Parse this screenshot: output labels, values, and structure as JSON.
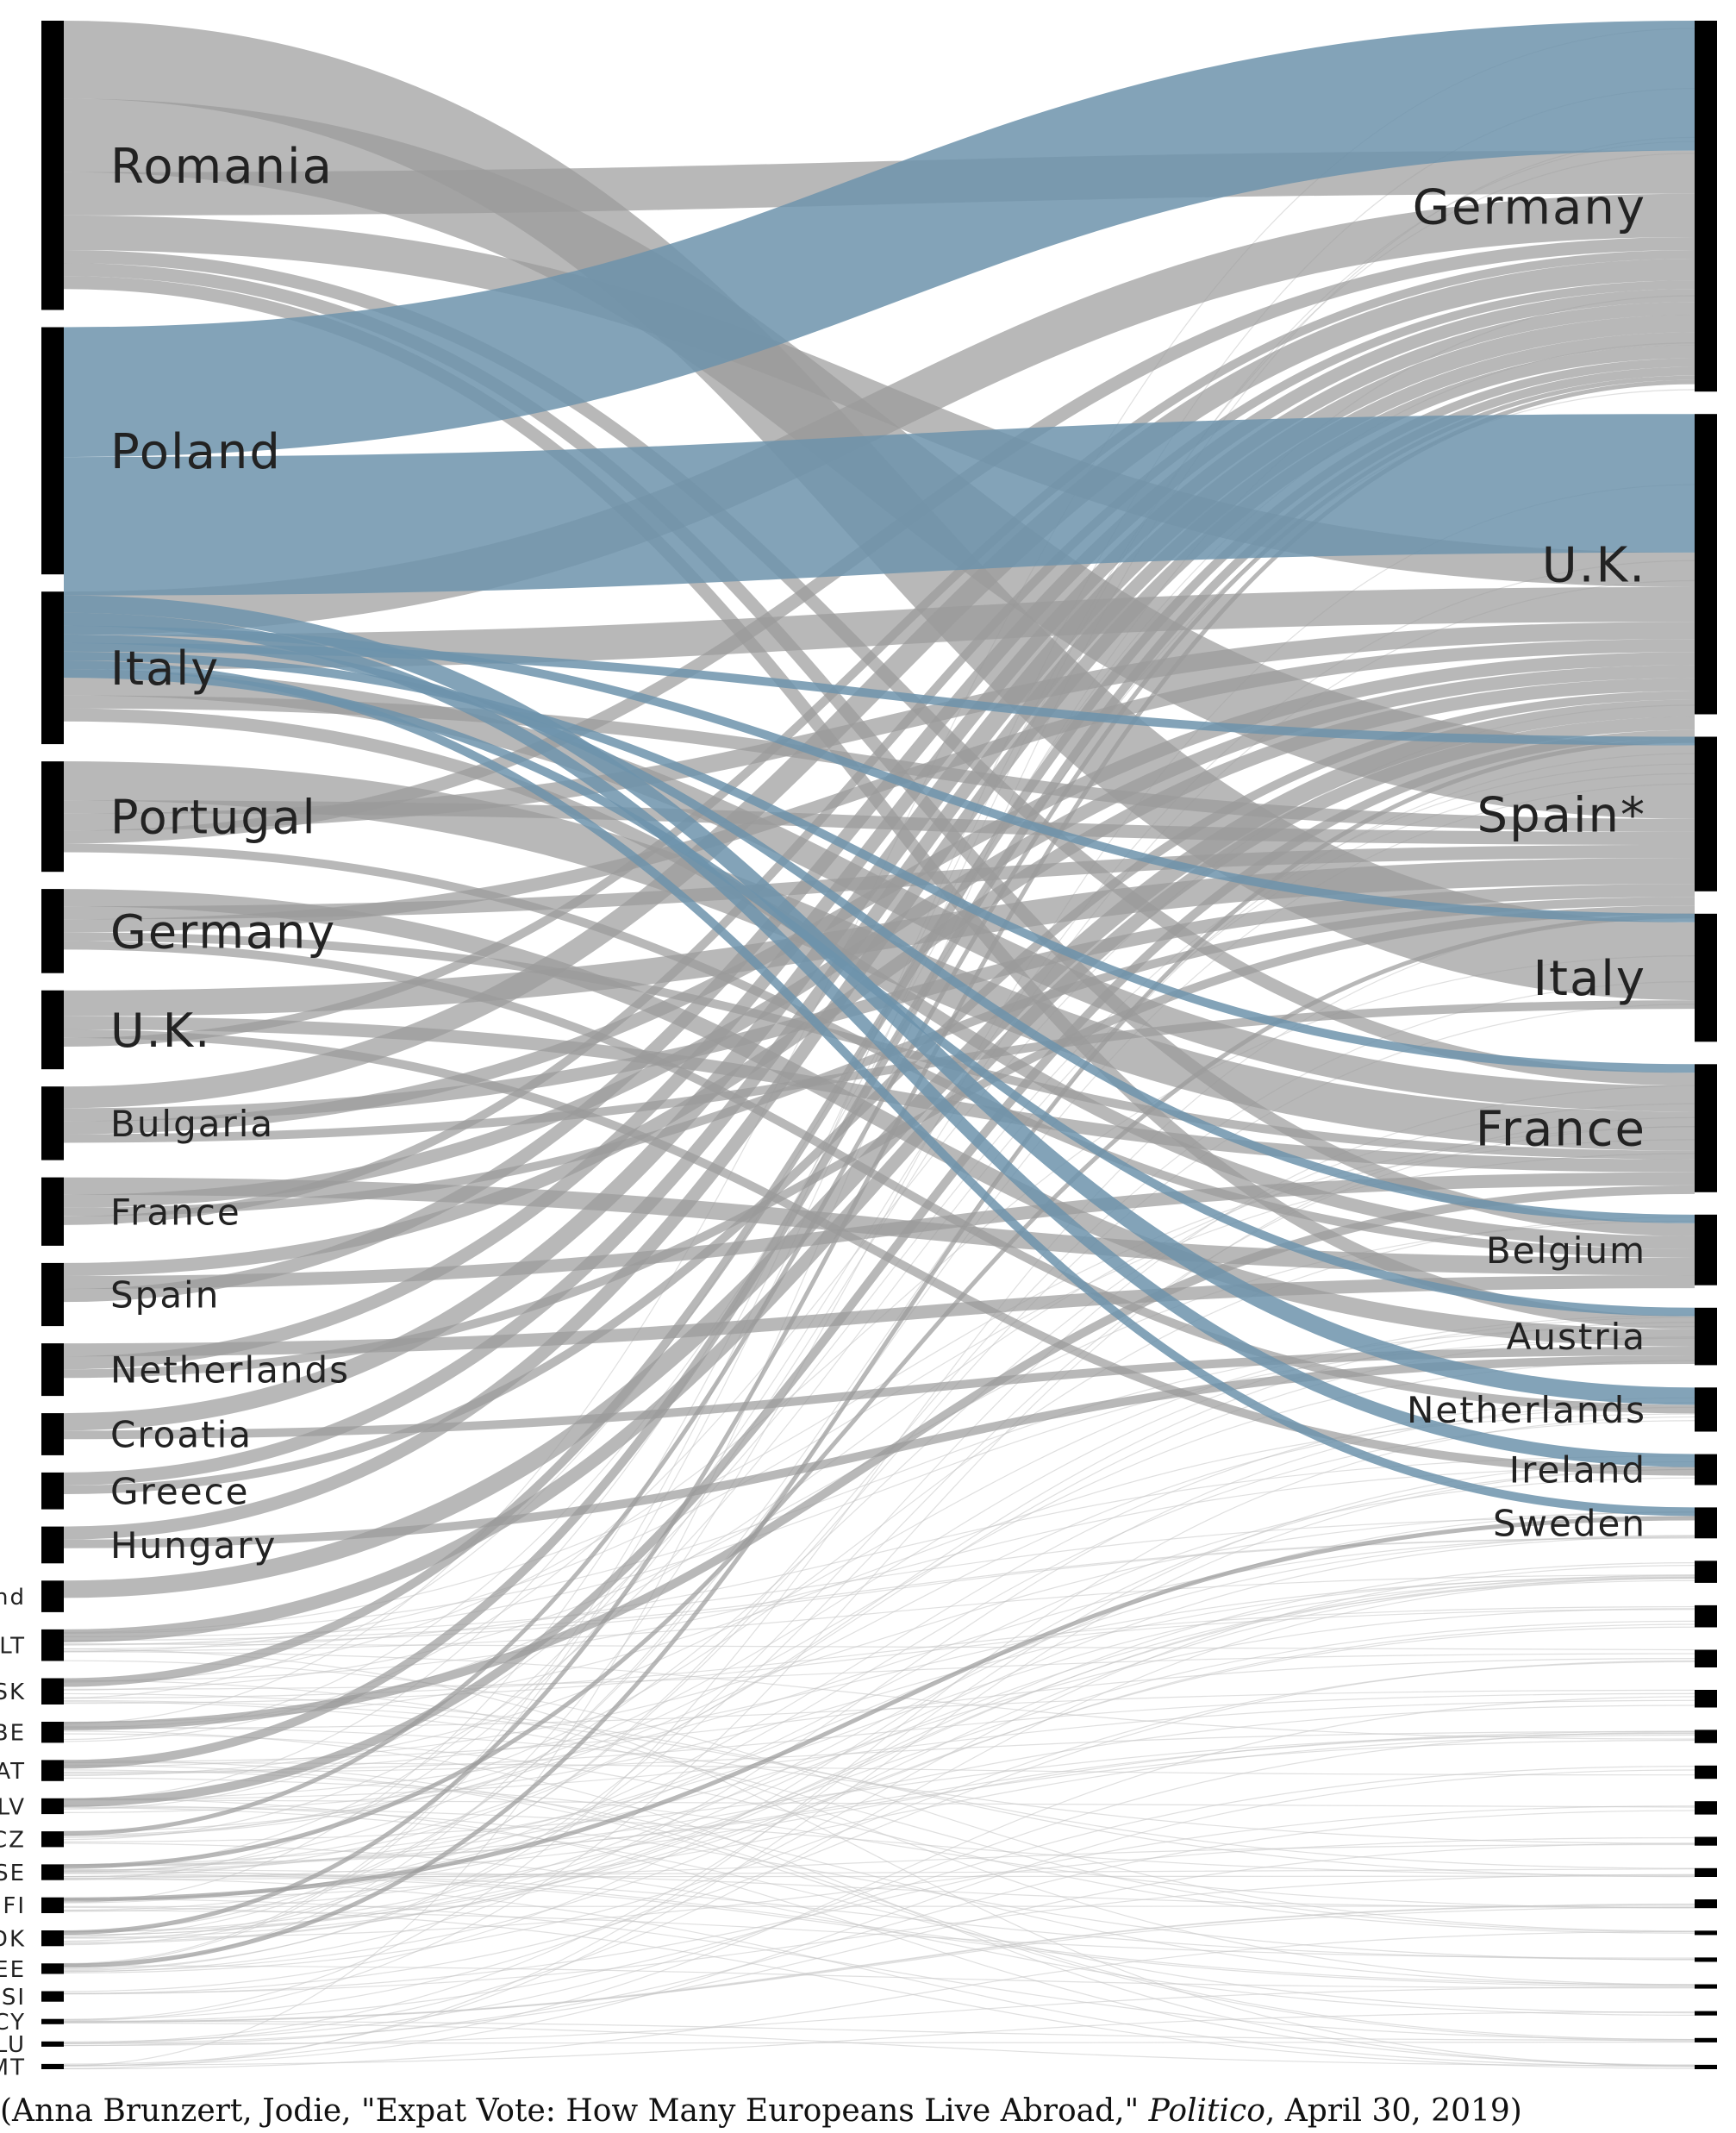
{
  "chart_data": {
    "type": "sankey",
    "title": "",
    "left_nodes": [
      {
        "label": "Romania",
        "weight": 55
      },
      {
        "label": "Poland",
        "weight": 47
      },
      {
        "label": "Italy",
        "weight": 29
      },
      {
        "label": "Portugal",
        "weight": 21
      },
      {
        "label": "Germany",
        "weight": 16
      },
      {
        "label": "U.K.",
        "weight": 15
      },
      {
        "label": "Bulgaria",
        "weight": 14
      },
      {
        "label": "France",
        "weight": 13
      },
      {
        "label": "Spain",
        "weight": 12
      },
      {
        "label": "Netherlands",
        "weight": 10
      },
      {
        "label": "Croatia",
        "weight": 8
      },
      {
        "label": "Greece",
        "weight": 7
      },
      {
        "label": "Hungary",
        "weight": 7
      },
      {
        "label": "Ireland",
        "weight": 6
      },
      {
        "label": "LT",
        "weight": 6
      },
      {
        "label": "SK",
        "weight": 5
      },
      {
        "label": "BE",
        "weight": 4
      },
      {
        "label": "AT",
        "weight": 4
      },
      {
        "label": "LV",
        "weight": 3
      },
      {
        "label": "CZ",
        "weight": 3
      },
      {
        "label": "SE",
        "weight": 3
      },
      {
        "label": "FI",
        "weight": 3
      },
      {
        "label": "DK",
        "weight": 3
      },
      {
        "label": "EE",
        "weight": 2
      },
      {
        "label": "SI",
        "weight": 2
      },
      {
        "label": "CY",
        "weight": 1
      },
      {
        "label": "LU",
        "weight": 1
      },
      {
        "label": "MT",
        "weight": 1
      }
    ],
    "right_nodes": [
      {
        "label": "Germany",
        "weight": 84
      },
      {
        "label": "U.K.",
        "weight": 68
      },
      {
        "label": "Spain*",
        "weight": 35
      },
      {
        "label": "Italy",
        "weight": 29
      },
      {
        "label": "France",
        "weight": 29
      },
      {
        "label": "Belgium",
        "weight": 16
      },
      {
        "label": "Austria",
        "weight": 13
      },
      {
        "label": "Netherlands",
        "weight": 10
      },
      {
        "label": "Ireland",
        "weight": 7
      },
      {
        "label": "Sweden",
        "weight": 7
      },
      {
        "label": "",
        "weight": 5
      },
      {
        "label": "",
        "weight": 5
      },
      {
        "label": "",
        "weight": 4
      },
      {
        "label": "",
        "weight": 4
      },
      {
        "label": "",
        "weight": 3
      },
      {
        "label": "",
        "weight": 3
      },
      {
        "label": "",
        "weight": 3
      },
      {
        "label": "",
        "weight": 2
      },
      {
        "label": "",
        "weight": 2
      },
      {
        "label": "",
        "weight": 2
      },
      {
        "label": "",
        "weight": 1
      },
      {
        "label": "",
        "weight": 1
      },
      {
        "label": "",
        "weight": 1
      },
      {
        "label": "",
        "weight": 1
      },
      {
        "label": "",
        "weight": 1
      },
      {
        "label": "",
        "weight": 1
      }
    ],
    "highlighted_source": "Poland",
    "flows": [
      {
        "source": "Poland",
        "target": "Germany",
        "value": 30
      },
      {
        "source": "Poland",
        "target": "U.K.",
        "value": 32
      },
      {
        "source": "Poland",
        "target": "Netherlands",
        "value": 4
      },
      {
        "source": "Poland",
        "target": "Ireland",
        "value": 3
      },
      {
        "source": "Poland",
        "target": "Italy",
        "value": 2
      },
      {
        "source": "Poland",
        "target": "Belgium",
        "value": 2
      },
      {
        "source": "Poland",
        "target": "Spain*",
        "value": 2
      },
      {
        "source": "Poland",
        "target": "France",
        "value": 2
      },
      {
        "source": "Poland",
        "target": "Sweden",
        "value": 2
      },
      {
        "source": "Poland",
        "target": "Austria",
        "value": 2
      },
      {
        "source": "Romania",
        "target": "Italy",
        "value": 18
      },
      {
        "source": "Romania",
        "target": "Spain*",
        "value": 17
      },
      {
        "source": "Romania",
        "target": "Germany",
        "value": 10
      },
      {
        "source": "Romania",
        "target": "U.K.",
        "value": 8
      },
      {
        "source": "Romania",
        "target": "France",
        "value": 3
      },
      {
        "source": "Romania",
        "target": "Belgium",
        "value": 3
      },
      {
        "source": "Romania",
        "target": "Austria",
        "value": 3
      },
      {
        "source": "Italy",
        "target": "Germany",
        "value": 10
      },
      {
        "source": "Italy",
        "target": "U.K.",
        "value": 8
      },
      {
        "source": "Italy",
        "target": "France",
        "value": 6
      },
      {
        "source": "Italy",
        "target": "Spain*",
        "value": 3
      },
      {
        "source": "Italy",
        "target": "Belgium",
        "value": 3
      },
      {
        "source": "Portugal",
        "target": "France",
        "value": 9
      },
      {
        "source": "Portugal",
        "target": "Spain*",
        "value": 3
      },
      {
        "source": "Portugal",
        "target": "U.K.",
        "value": 4
      },
      {
        "source": "Portugal",
        "target": "Germany",
        "value": 3
      },
      {
        "source": "Portugal",
        "target": "Belgium",
        "value": 2
      },
      {
        "source": "Germany",
        "target": "Austria",
        "value": 4
      },
      {
        "source": "Germany",
        "target": "Spain*",
        "value": 3
      },
      {
        "source": "Germany",
        "target": "U.K.",
        "value": 3
      },
      {
        "source": "Germany",
        "target": "France",
        "value": 2
      },
      {
        "source": "Germany",
        "target": "Netherlands",
        "value": 2
      },
      {
        "source": "U.K.",
        "target": "Spain*",
        "value": 6
      },
      {
        "source": "U.K.",
        "target": "France",
        "value": 3
      },
      {
        "source": "U.K.",
        "target": "Ireland",
        "value": 2
      },
      {
        "source": "U.K.",
        "target": "Germany",
        "value": 2
      },
      {
        "source": "Bulgaria",
        "target": "Germany",
        "value": 5
      },
      {
        "source": "Bulgaria",
        "target": "Spain*",
        "value": 3
      },
      {
        "source": "Bulgaria",
        "target": "U.K.",
        "value": 3
      },
      {
        "source": "Bulgaria",
        "target": "Italy",
        "value": 2
      },
      {
        "source": "France",
        "target": "Belgium",
        "value": 4
      },
      {
        "source": "France",
        "target": "U.K.",
        "value": 3
      },
      {
        "source": "France",
        "target": "Spain*",
        "value": 2
      },
      {
        "source": "France",
        "target": "Germany",
        "value": 2
      },
      {
        "source": "Spain",
        "target": "U.K.",
        "value": 3
      },
      {
        "source": "Spain",
        "target": "France",
        "value": 3
      },
      {
        "source": "Spain",
        "target": "Germany",
        "value": 3
      },
      {
        "source": "Netherlands",
        "target": "Belgium",
        "value": 3
      },
      {
        "source": "Netherlands",
        "target": "Germany",
        "value": 3
      },
      {
        "source": "Netherlands",
        "target": "Spain*",
        "value": 2
      },
      {
        "source": "Croatia",
        "target": "Germany",
        "value": 4
      },
      {
        "source": "Croatia",
        "target": "Austria",
        "value": 2
      },
      {
        "source": "Greece",
        "target": "Germany",
        "value": 3
      },
      {
        "source": "Greece",
        "target": "U.K.",
        "value": 2
      },
      {
        "source": "Hungary",
        "target": "Germany",
        "value": 3
      },
      {
        "source": "Hungary",
        "target": "Austria",
        "value": 2
      },
      {
        "source": "Ireland",
        "target": "U.K.",
        "value": 4
      },
      {
        "source": "LT",
        "target": "U.K.",
        "value": 3
      },
      {
        "source": "SK",
        "target": "Germany",
        "value": 2
      },
      {
        "source": "BE",
        "target": "France",
        "value": 2
      },
      {
        "source": "AT",
        "target": "Germany",
        "value": 2
      },
      {
        "source": "LV",
        "target": "U.K.",
        "value": 2
      },
      {
        "source": "CZ",
        "target": "Germany",
        "value": 1
      },
      {
        "source": "SE",
        "target": "Spain*",
        "value": 1
      },
      {
        "source": "FI",
        "target": "Sweden",
        "value": 1
      },
      {
        "source": "DK",
        "target": "Germany",
        "value": 1
      },
      {
        "source": "EE",
        "target": "U.K.",
        "value": 1
      }
    ]
  },
  "caption": {
    "prefix": "(Anna Brunzert, Jodie, \"Expat Vote: How Many Europeans Live Abroad,\" ",
    "source": "Politico",
    "suffix": ", April 30, 2019)"
  },
  "colors": {
    "highlight_flow": "#6d93ab",
    "highlight_flow_cross": "#3a93c0",
    "flow": "#9a9a9a",
    "flow_faint": "#c4c4c4",
    "node": "#000000",
    "label": "#222222"
  }
}
